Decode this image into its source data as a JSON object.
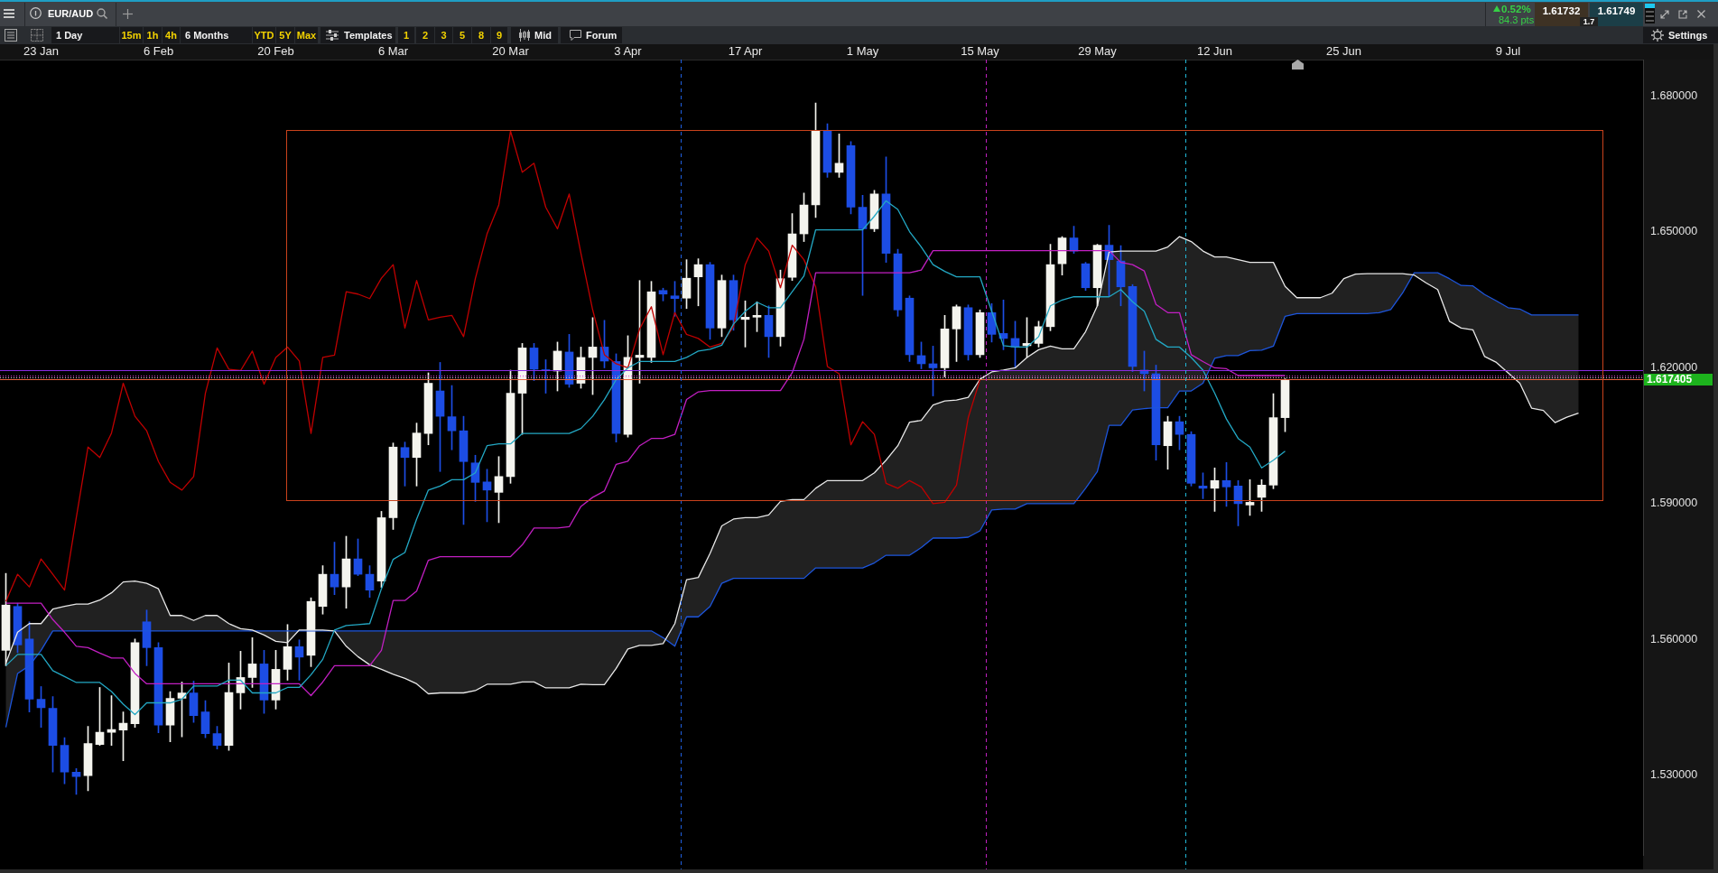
{
  "chart_data": {
    "type": "candlestick",
    "title": "EUR/AUD",
    "categories": [
      null,
      null,
      null,
      "23 Jan",
      null,
      null,
      null,
      null,
      null,
      null,
      null,
      null,
      null,
      "6 Feb",
      null,
      null,
      null,
      null,
      null,
      null,
      null,
      null,
      null,
      "20 Feb",
      null,
      null,
      null,
      null,
      null,
      null,
      null,
      null,
      null,
      "6 Mar",
      null,
      null,
      null,
      null,
      null,
      null,
      null,
      null,
      null,
      "20 Mar",
      null,
      null,
      null,
      null,
      null,
      null,
      null,
      null,
      null,
      "3 Apr",
      null,
      null,
      null,
      null,
      null,
      null,
      null,
      null,
      null,
      "17 Apr",
      null,
      null,
      null,
      null,
      null,
      null,
      null,
      null,
      null,
      "1 May",
      null,
      null,
      null,
      null,
      null,
      null,
      null,
      null,
      null,
      "15 May",
      null,
      null,
      null,
      null,
      null,
      null,
      null,
      null,
      null,
      "29 May",
      null,
      null,
      null,
      null,
      null,
      null,
      null,
      null,
      null,
      "12 Jun",
      null,
      null,
      null,
      null,
      null,
      null,
      null,
      null,
      null,
      null,
      "25 Jun",
      null,
      null,
      null,
      null,
      null,
      null,
      null,
      null,
      null,
      null,
      null,
      null,
      null,
      "9 Jul",
      null,
      null,
      null,
      null,
      null,
      null,
      null,
      null,
      null,
      null,
      null
    ],
    "ohlc": [
      [
        1.5576,
        1.5746,
        1.5542,
        1.5676
      ],
      [
        1.5673,
        1.568,
        1.5571,
        1.5588
      ],
      [
        1.5601,
        1.5639,
        1.544,
        1.5468
      ],
      [
        1.5468,
        1.5496,
        1.5406,
        1.5449
      ],
      [
        1.5448,
        1.5474,
        1.5307,
        1.5366
      ],
      [
        1.5366,
        1.5383,
        1.5281,
        1.5307
      ],
      [
        1.5307,
        1.5315,
        1.5258,
        1.5297
      ],
      [
        1.5299,
        1.5408,
        1.5266,
        1.537
      ],
      [
        1.5368,
        1.5494,
        1.5366,
        1.5395
      ],
      [
        1.5395,
        1.5476,
        1.5366,
        1.5401
      ],
      [
        1.54,
        1.544,
        1.5332,
        1.5415
      ],
      [
        1.5414,
        1.5601,
        1.5406,
        1.5593
      ],
      [
        1.5639,
        1.5665,
        1.5542,
        1.5582
      ],
      [
        1.5582,
        1.5593,
        1.5394,
        1.5411
      ],
      [
        1.5411,
        1.5485,
        1.5374,
        1.547
      ],
      [
        1.547,
        1.5506,
        1.5385,
        1.5482
      ],
      [
        1.5482,
        1.5508,
        1.5417,
        1.5432
      ],
      [
        1.544,
        1.5465,
        1.5383,
        1.5392
      ],
      [
        1.5392,
        1.5408,
        1.5358,
        1.5366
      ],
      [
        1.5366,
        1.5548,
        1.5355,
        1.5483
      ],
      [
        1.5482,
        1.5574,
        1.5446,
        1.5516
      ],
      [
        1.5516,
        1.5604,
        1.5494,
        1.5546
      ],
      [
        1.5546,
        1.5576,
        1.5437,
        1.5466
      ],
      [
        1.5466,
        1.5576,
        1.5446,
        1.5534
      ],
      [
        1.5534,
        1.5633,
        1.551,
        1.5584
      ],
      [
        1.5584,
        1.5599,
        1.551,
        1.5561
      ],
      [
        1.5565,
        1.5692,
        1.554,
        1.5684
      ],
      [
        1.5673,
        1.5763,
        1.5656,
        1.5744
      ],
      [
        1.5744,
        1.5815,
        1.5699,
        1.5716
      ],
      [
        1.5716,
        1.5828,
        1.5669,
        1.5778
      ],
      [
        1.5778,
        1.5822,
        1.5741,
        1.5744
      ],
      [
        1.5744,
        1.5763,
        1.5693,
        1.5709
      ],
      [
        1.5729,
        1.5883,
        1.5715,
        1.5869
      ],
      [
        1.5869,
        1.6034,
        1.5843,
        1.6025
      ],
      [
        1.6024,
        1.6036,
        1.5939,
        1.6002
      ],
      [
        1.6002,
        1.6078,
        1.5939,
        1.6056
      ],
      [
        1.6055,
        1.6189,
        1.603,
        1.6166
      ],
      [
        1.6149,
        1.6212,
        1.5971,
        1.6093
      ],
      [
        1.6092,
        1.6161,
        1.6019,
        1.6061
      ],
      [
        1.6061,
        1.6093,
        1.5854,
        1.5993
      ],
      [
        1.599,
        1.6007,
        1.5905,
        1.5947
      ],
      [
        1.5948,
        1.5976,
        1.586,
        1.593
      ],
      [
        1.5925,
        1.6004,
        1.5858,
        1.596
      ],
      [
        1.596,
        1.6195,
        1.5945,
        1.6144
      ],
      [
        1.6144,
        1.6254,
        1.6053,
        1.6244
      ],
      [
        1.6244,
        1.6254,
        1.6172,
        1.6197
      ],
      [
        1.6196,
        1.6218,
        1.6144,
        1.6194
      ],
      [
        1.6193,
        1.6257,
        1.6149,
        1.6237
      ],
      [
        1.6235,
        1.6274,
        1.6157,
        1.6164
      ],
      [
        1.6166,
        1.6246,
        1.6155,
        1.6223
      ],
      [
        1.6223,
        1.6311,
        1.6141,
        1.6246
      ],
      [
        1.6246,
        1.6305,
        1.62,
        1.6215
      ],
      [
        1.6214,
        1.6231,
        1.6036,
        1.6055
      ],
      [
        1.6053,
        1.6271,
        1.6047,
        1.6223
      ],
      [
        1.6223,
        1.6393,
        1.6166,
        1.6228
      ],
      [
        1.6223,
        1.6391,
        1.6212,
        1.6368
      ],
      [
        1.6371,
        1.6376,
        1.6348,
        1.6363
      ],
      [
        1.6359,
        1.6391,
        1.6314,
        1.6353
      ],
      [
        1.6354,
        1.6439,
        1.6331,
        1.6398
      ],
      [
        1.6401,
        1.6441,
        1.6337,
        1.6428
      ],
      [
        1.6428,
        1.6433,
        1.6263,
        1.6288
      ],
      [
        1.6288,
        1.6405,
        1.6269,
        1.6393
      ],
      [
        1.6393,
        1.6405,
        1.6283,
        1.6306
      ],
      [
        1.6307,
        1.6348,
        1.6246,
        1.6312
      ],
      [
        1.6312,
        1.6346,
        1.628,
        1.6316
      ],
      [
        1.6316,
        1.6337,
        1.6223,
        1.6269
      ],
      [
        1.6269,
        1.6416,
        1.6248,
        1.6397
      ],
      [
        1.64,
        1.6541,
        1.6393,
        1.6496
      ],
      [
        1.6496,
        1.6586,
        1.6479,
        1.656
      ],
      [
        1.656,
        1.6785,
        1.6532,
        1.6723
      ],
      [
        1.6723,
        1.6739,
        1.6621,
        1.6632
      ],
      [
        1.6632,
        1.6717,
        1.6621,
        1.6652
      ],
      [
        1.6691,
        1.67,
        1.654,
        1.6555
      ],
      [
        1.6555,
        1.6581,
        1.636,
        1.6507
      ],
      [
        1.6507,
        1.6592,
        1.6501,
        1.6584
      ],
      [
        1.6584,
        1.6666,
        1.6433,
        1.6453
      ],
      [
        1.6452,
        1.6462,
        1.6314,
        1.6328
      ],
      [
        1.6354,
        1.6359,
        1.6214,
        1.6229
      ],
      [
        1.6227,
        1.6257,
        1.6198,
        1.6209
      ],
      [
        1.6209,
        1.6248,
        1.6138,
        1.62
      ],
      [
        1.62,
        1.6316,
        1.618,
        1.6286
      ],
      [
        1.6286,
        1.6339,
        1.6214,
        1.6335
      ],
      [
        1.6333,
        1.6339,
        1.6217,
        1.6229
      ],
      [
        1.6229,
        1.6328,
        1.6223,
        1.6322
      ],
      [
        1.6322,
        1.6342,
        1.6257,
        1.6274
      ],
      [
        1.6276,
        1.635,
        1.624,
        1.6265
      ],
      [
        1.6265,
        1.6303,
        1.62,
        1.6246
      ],
      [
        1.6249,
        1.6311,
        1.6223,
        1.6254
      ],
      [
        1.6254,
        1.6303,
        1.6246,
        1.6291
      ],
      [
        1.6291,
        1.6473,
        1.6282,
        1.6428
      ],
      [
        1.643,
        1.649,
        1.6405,
        1.6487
      ],
      [
        1.6487,
        1.6513,
        1.6453,
        1.6458
      ],
      [
        1.643,
        1.6433,
        1.6371,
        1.6377
      ],
      [
        1.6377,
        1.6473,
        1.6337,
        1.6471
      ],
      [
        1.6471,
        1.6515,
        1.6359,
        1.6439
      ],
      [
        1.6436,
        1.647,
        1.6337,
        1.6379
      ],
      [
        1.638,
        1.6384,
        1.6192,
        1.6203
      ],
      [
        1.6195,
        1.6237,
        1.6149,
        1.6187
      ],
      [
        1.6187,
        1.6206,
        1.5996,
        1.603
      ],
      [
        1.6028,
        1.6093,
        1.5976,
        1.6081
      ],
      [
        1.6081,
        1.6093,
        1.6019,
        1.6053
      ],
      [
        1.6053,
        1.6059,
        1.5939,
        1.5945
      ],
      [
        1.5939,
        1.5968,
        1.5911,
        1.5934
      ],
      [
        1.5934,
        1.5979,
        1.5883,
        1.5951
      ],
      [
        1.5951,
        1.5991,
        1.5894,
        1.5937
      ],
      [
        1.5939,
        1.5951,
        1.5851,
        1.59
      ],
      [
        1.5897,
        1.5953,
        1.5874,
        1.5903
      ],
      [
        1.5914,
        1.5953,
        1.5883,
        1.5941
      ],
      [
        1.5941,
        1.6143,
        1.5933,
        1.609
      ],
      [
        1.609,
        1.6176,
        1.6059,
        1.6174
      ],
      null,
      null,
      null,
      null,
      null,
      null,
      null,
      null,
      null,
      null,
      null,
      null,
      null,
      null,
      null,
      null,
      null,
      null,
      null,
      null,
      null,
      null,
      null,
      null,
      null,
      null,
      null,
      null,
      null,
      null
    ],
    "colors": [
      "#f4f4ee",
      "#1c4de4",
      "#1c4de4",
      "#1c4de4",
      "#1c4de4",
      "#1c4de4",
      "#1c4de4",
      "#f4f4ee",
      "#f4f4ee",
      "#f4f4ee",
      "#f4f4ee",
      "#f4f4ee",
      "#1c4de4",
      "#1c4de4",
      "#f4f4ee",
      "#f4f4ee",
      "#1c4de4",
      "#1c4de4",
      "#1c4de4",
      "#f4f4ee",
      "#f4f4ee",
      "#f4f4ee",
      "#1c4de4",
      "#f4f4ee",
      "#f4f4ee",
      "#1c4de4",
      "#f4f4ee",
      "#f4f4ee",
      "#1c4de4",
      "#f4f4ee",
      "#1c4de4",
      "#1c4de4",
      "#f4f4ee",
      "#f4f4ee",
      "#1c4de4",
      "#f4f4ee",
      "#f4f4ee",
      "#1c4de4",
      "#1c4de4",
      "#1c4de4",
      "#1c4de4",
      "#1c4de4",
      "#f4f4ee",
      "#f4f4ee",
      "#f4f4ee",
      "#1c4de4",
      "#1c4de4",
      "#f4f4ee",
      "#1c4de4",
      "#f4f4ee",
      "#f4f4ee",
      "#1c4de4",
      "#1c4de4",
      "#f4f4ee",
      "#f4f4ee",
      "#f4f4ee",
      "#1c4de4",
      "#1c4de4",
      "#f4f4ee",
      "#f4f4ee",
      "#1c4de4",
      "#f4f4ee",
      "#1c4de4",
      "#f4f4ee",
      "#f4f4ee",
      "#1c4de4",
      "#f4f4ee",
      "#f4f4ee",
      "#f4f4ee",
      "#f4f4ee",
      "#1c4de4",
      "#f4f4ee",
      "#1c4de4",
      "#1c4de4",
      "#f4f4ee",
      "#1c4de4",
      "#1c4de4",
      "#1c4de4",
      "#1c4de4",
      "#1c4de4",
      "#f4f4ee",
      "#f4f4ee",
      "#1c4de4",
      "#f4f4ee",
      "#1c4de4",
      "#1c4de4",
      "#1c4de4",
      "#f4f4ee",
      "#f4f4ee",
      "#f4f4ee",
      "#f4f4ee",
      "#1c4de4",
      "#1c4de4",
      "#f4f4ee",
      "#1c4de4",
      "#1c4de4",
      "#1c4de4",
      "#1c4de4",
      "#1c4de4",
      "#f4f4ee",
      "#1c4de4",
      "#1c4de4",
      "#1c4de4",
      "#f4f4ee",
      "#1c4de4",
      "#1c4de4",
      "#f4f4ee",
      "#f4f4ee",
      "#f4f4ee",
      "#f4f4ee",
      null,
      null,
      null,
      null,
      null,
      null,
      null,
      null,
      null,
      null,
      null,
      null,
      null,
      null,
      null,
      null,
      null,
      null,
      null,
      null,
      null,
      null,
      null,
      null,
      null,
      null,
      null,
      null,
      null,
      null
    ],
    "series": [
      {
        "type": "line",
        "color": "#23a8c4",
        "values": [
          1.5542,
          1.5567,
          1.5567,
          1.5567,
          1.5531,
          1.5518,
          1.5505,
          1.5505,
          1.5505,
          1.5485,
          1.5457,
          1.5434,
          1.546,
          1.546,
          1.546,
          1.5468,
          1.5497,
          1.5497,
          1.5497,
          1.551,
          1.551,
          1.5482,
          1.5482,
          1.5482,
          1.5494,
          1.5494,
          1.5522,
          1.5556,
          1.5621,
          1.5631,
          1.5633,
          1.5635,
          1.5712,
          1.5777,
          1.5792,
          1.5866,
          1.593,
          1.5939,
          1.5953,
          1.5953,
          1.5968,
          1.6028,
          1.6032,
          1.6032,
          1.6055,
          1.6055,
          1.6055,
          1.6055,
          1.6055,
          1.6066,
          1.6093,
          1.613,
          1.6174,
          1.62,
          1.6214,
          1.6214,
          1.6214,
          1.6214,
          1.6223,
          1.6237,
          1.6241,
          1.625,
          1.6297,
          1.6325,
          1.6345,
          1.6333,
          1.6333,
          1.6368,
          1.6403,
          1.6505,
          1.6505,
          1.6505,
          1.6505,
          1.6505,
          1.6535,
          1.6569,
          1.655,
          1.6501,
          1.6467,
          1.6428,
          1.6413,
          1.6401,
          1.6401,
          1.6401,
          1.6325,
          1.6249,
          1.6246,
          1.6246,
          1.6269,
          1.6337,
          1.635,
          1.6357,
          1.6357,
          1.6357,
          1.6357,
          1.6373,
          1.6346,
          1.6325,
          1.6263,
          1.6246,
          1.6246,
          1.6223,
          1.6195,
          1.6144,
          1.6087,
          1.6044,
          1.6025,
          1.5979,
          1.5996,
          1.6016,
          null,
          null,
          null,
          null,
          null,
          null,
          null,
          null,
          null,
          null,
          null,
          null,
          null,
          null,
          null,
          null,
          null,
          null,
          null,
          null,
          null,
          null,
          null,
          null,
          null,
          null,
          null,
          null,
          null,
          null
        ]
      },
      {
        "type": "line",
        "color": "#c21fc2",
        "values": [
          1.568,
          1.568,
          1.568,
          1.568,
          1.5644,
          1.5616,
          1.5585,
          1.5582,
          1.557,
          1.5559,
          1.5559,
          1.5525,
          1.5502,
          1.5502,
          1.5502,
          1.5502,
          1.5502,
          1.5502,
          1.5502,
          1.5502,
          1.5502,
          1.5502,
          1.5502,
          1.5502,
          1.5502,
          1.5502,
          1.5476,
          1.5506,
          1.5542,
          1.5542,
          1.5542,
          1.5542,
          1.5576,
          1.5686,
          1.5686,
          1.5707,
          1.5775,
          1.5783,
          1.5783,
          1.5783,
          1.5783,
          1.5783,
          1.5783,
          1.5783,
          1.5809,
          1.5846,
          1.5846,
          1.5846,
          1.5849,
          1.5894,
          1.5914,
          1.5928,
          1.5987,
          1.5994,
          1.6028,
          1.6044,
          1.6044,
          1.6053,
          1.613,
          1.6147,
          1.615,
          1.615,
          1.615,
          1.615,
          1.615,
          1.615,
          1.615,
          1.6189,
          1.6263,
          1.641,
          1.641,
          1.641,
          1.641,
          1.641,
          1.641,
          1.641,
          1.641,
          1.641,
          1.6416,
          1.6459,
          1.6459,
          1.6459,
          1.6459,
          1.6459,
          1.6459,
          1.6459,
          1.6459,
          1.6459,
          1.6459,
          1.6459,
          1.6459,
          1.6459,
          1.6459,
          1.6459,
          1.6459,
          1.6433,
          1.6428,
          1.6414,
          1.634,
          1.6322,
          1.6322,
          1.6229,
          1.6214,
          1.62,
          1.6198,
          1.6183,
          1.6183,
          1.6183,
          1.6183,
          1.6183,
          null,
          null,
          null,
          null,
          null,
          null,
          null,
          null,
          null,
          null,
          null,
          null,
          null,
          null,
          null,
          null,
          null,
          null,
          null,
          null,
          null,
          null,
          null,
          null,
          null,
          null,
          null,
          null,
          null,
          null
        ]
      },
      {
        "type": "line",
        "color": "#c00000",
        "values": [
          1.5684,
          1.5744,
          1.5716,
          1.5778,
          1.5744,
          1.5709,
          1.5869,
          1.6025,
          1.6002,
          1.6056,
          1.6166,
          1.6093,
          1.6061,
          1.5993,
          1.5947,
          1.593,
          1.596,
          1.6144,
          1.6244,
          1.6197,
          1.6194,
          1.6237,
          1.6164,
          1.6223,
          1.6246,
          1.6215,
          1.6055,
          1.6223,
          1.6228,
          1.6368,
          1.6363,
          1.6353,
          1.6398,
          1.6428,
          1.6288,
          1.6393,
          1.6306,
          1.6312,
          1.6316,
          1.6269,
          1.6397,
          1.6496,
          1.656,
          1.6723,
          1.6632,
          1.6652,
          1.6555,
          1.6507,
          1.6584,
          1.6453,
          1.6328,
          1.6229,
          1.6209,
          1.62,
          1.6286,
          1.6335,
          1.6229,
          1.6322,
          1.6274,
          1.6265,
          1.6246,
          1.6254,
          1.6291,
          1.6428,
          1.6487,
          1.6458,
          1.6377,
          1.6471,
          1.6439,
          1.6379,
          1.6203,
          1.6187,
          1.603,
          1.6081,
          1.6053,
          1.5945,
          1.5934,
          1.5951,
          1.5937,
          1.59,
          1.5903,
          1.5941,
          1.609,
          1.6174,
          null,
          null,
          null,
          null,
          null,
          null,
          null,
          null,
          null,
          null,
          null,
          null,
          null,
          null,
          null,
          null,
          null,
          null,
          null,
          null,
          null,
          null,
          null,
          null,
          null,
          null,
          null,
          null,
          null,
          null,
          null,
          null,
          null,
          null,
          null,
          null,
          null,
          null,
          null,
          null,
          null,
          null,
          null,
          null,
          null,
          null,
          null,
          null,
          null,
          null,
          null,
          null,
          null,
          null,
          null,
          null
        ]
      },
      {
        "type": "line",
        "color": "#e8e8e8",
        "values": [
          1.5548,
          1.5616,
          1.5635,
          1.5635,
          1.5667,
          1.5673,
          1.5678,
          1.5678,
          1.5687,
          1.5703,
          1.5727,
          1.5729,
          1.5724,
          1.5712,
          1.5653,
          1.5653,
          1.5642,
          1.5653,
          1.5653,
          1.5635,
          1.5624,
          1.5621,
          1.561,
          1.5596,
          1.5593,
          1.5621,
          1.5621,
          1.5621,
          1.5619,
          1.5585,
          1.5562,
          1.5544,
          1.5534,
          1.5523,
          1.5514,
          1.5502,
          1.548,
          1.5482,
          1.5482,
          1.5482,
          1.5487,
          1.5501,
          1.5501,
          1.5501,
          1.5506,
          1.5506,
          1.5493,
          1.5493,
          1.5493,
          1.5501,
          1.55,
          1.55,
          1.5536,
          1.5579,
          1.5587,
          1.5587,
          1.5591,
          1.5635,
          1.5732,
          1.5737,
          1.579,
          1.5851,
          1.5866,
          1.5869,
          1.5869,
          1.5875,
          1.5905,
          1.5909,
          1.5909,
          1.5934,
          1.5951,
          1.5951,
          1.5951,
          1.5951,
          1.5968,
          1.5996,
          1.6028,
          1.608,
          1.6084,
          1.6118,
          1.6127,
          1.6129,
          1.6135,
          1.6175,
          1.6191,
          1.6195,
          1.62,
          1.6223,
          1.624,
          1.6248,
          1.6242,
          1.6242,
          1.628,
          1.6337,
          1.6456,
          1.6458,
          1.6458,
          1.6458,
          1.6458,
          1.6467,
          1.649,
          1.6479,
          1.6458,
          1.6445,
          1.6445,
          1.6439,
          1.6433,
          1.6433,
          1.6433,
          1.638,
          1.6355,
          1.6355,
          1.6355,
          1.6365,
          1.6397,
          1.6407,
          1.6408,
          1.6408,
          1.6408,
          1.6408,
          1.6405,
          1.6388,
          1.6373,
          1.6303,
          1.6288,
          1.6284,
          1.6225,
          1.6212,
          1.6189,
          1.6166,
          1.6111,
          1.6106,
          1.6079,
          1.6091,
          1.61,
          null,
          null,
          null,
          null,
          null
        ],
        "lower": [
          1.5406,
          1.5525,
          1.5542,
          1.5576,
          1.5619,
          1.5619,
          1.5619,
          1.5619,
          1.5619,
          1.5619,
          1.5619,
          1.5619,
          1.5619,
          1.5619,
          1.5619,
          1.5619,
          1.5619,
          1.5619,
          1.5619,
          1.5619,
          1.5619,
          1.5619,
          1.5619,
          1.5619,
          1.5619,
          1.5619,
          1.5619,
          1.5619,
          1.5619,
          1.5619,
          1.5619,
          1.5619,
          1.5619,
          1.5619,
          1.5619,
          1.5619,
          1.5619,
          1.5619,
          1.5619,
          1.5619,
          1.5619,
          1.5619,
          1.5619,
          1.5619,
          1.5619,
          1.5619,
          1.5619,
          1.5619,
          1.5619,
          1.5619,
          1.5619,
          1.5619,
          1.5619,
          1.5619,
          1.5619,
          1.5619,
          1.5604,
          1.5585,
          1.565,
          1.565,
          1.5673,
          1.5724,
          1.5735,
          1.5735,
          1.5735,
          1.5735,
          1.5735,
          1.5735,
          1.5735,
          1.5758,
          1.5758,
          1.5758,
          1.5758,
          1.5758,
          1.5769,
          1.5786,
          1.5786,
          1.5786,
          1.5803,
          1.5824,
          1.5824,
          1.5824,
          1.5826,
          1.584,
          1.5886,
          1.5888,
          1.5888,
          1.59,
          1.59,
          1.59,
          1.59,
          1.59,
          1.5934,
          1.5971,
          1.6073,
          1.6073,
          1.6107,
          1.611,
          1.6112,
          1.6112,
          1.6149,
          1.6149,
          1.6166,
          1.6221,
          1.6227,
          1.6227,
          1.6238,
          1.6239,
          1.6248,
          1.6314,
          1.632,
          1.632,
          1.632,
          1.632,
          1.632,
          1.632,
          1.632,
          1.6322,
          1.6329,
          1.6365,
          1.641,
          1.641,
          1.641,
          1.6397,
          1.6382,
          1.6381,
          1.6362,
          1.6348,
          1.6333,
          1.633,
          1.6317,
          1.6317,
          1.6317,
          1.6317,
          1.6317,
          null,
          null,
          null,
          null,
          null
        ],
        "upper": [
          1.5548,
          1.5616,
          1.5635,
          1.5635,
          1.5667,
          1.5673,
          1.5678,
          1.5678,
          1.5687,
          1.5703,
          1.5727,
          1.5729,
          1.5724,
          1.5712,
          1.5653,
          1.5653,
          1.5642,
          1.5653,
          1.5653,
          1.5635,
          1.5624,
          1.5621,
          1.561,
          1.5596,
          1.5593,
          1.5621,
          1.5621,
          1.5621,
          1.5619,
          1.5585,
          1.5562,
          1.5544,
          1.5534,
          1.5523,
          1.5514,
          1.5502,
          1.548,
          1.5482,
          1.5482,
          1.5482,
          1.5487,
          1.5501,
          1.5501,
          1.5501,
          1.5506,
          1.5506,
          1.5493,
          1.5493,
          1.5493,
          1.5501,
          1.55,
          1.55,
          1.5536,
          1.5579,
          1.5587,
          1.5587,
          1.5591,
          1.5635,
          1.5732,
          1.5737,
          1.579,
          1.5851,
          1.5866,
          1.5869,
          1.5869,
          1.5875,
          1.5905,
          1.5909,
          1.5909,
          1.5934,
          1.5951,
          1.5951,
          1.5951,
          1.5951,
          1.5968,
          1.5996,
          1.6028,
          1.608,
          1.6084,
          1.6118,
          1.6127,
          1.6129,
          1.6135,
          1.6175,
          1.6191,
          1.6195,
          1.62,
          1.6223,
          1.624,
          1.6248,
          1.6242,
          1.6242,
          1.628,
          1.6337,
          1.6456,
          1.6458,
          1.6458,
          1.6458,
          1.6458,
          1.6467,
          1.649,
          1.6479,
          1.6458,
          1.6445,
          1.6445,
          1.6439,
          1.6433,
          1.6433,
          1.6433,
          1.638,
          1.6355,
          1.6355,
          1.6355,
          1.6365,
          1.6397,
          1.6407,
          1.6408,
          1.6408,
          1.6408,
          1.6408,
          1.6405,
          1.6388,
          1.6373,
          1.6303,
          1.6288,
          1.6284,
          1.6225,
          1.6212,
          1.6189,
          1.6166,
          1.6111,
          1.6106,
          1.6079,
          1.6091,
          1.61,
          null,
          null,
          null,
          null,
          null
        ]
      },
      {
        "type": "line",
        "color": "#1d55dc",
        "values": [
          1.5406,
          1.5525,
          1.5542,
          1.5576,
          1.5619,
          1.5619,
          1.5619,
          1.5619,
          1.5619,
          1.5619,
          1.5619,
          1.5619,
          1.5619,
          1.5619,
          1.5619,
          1.5619,
          1.5619,
          1.5619,
          1.5619,
          1.5619,
          1.5619,
          1.5619,
          1.5619,
          1.5619,
          1.5619,
          1.5619,
          1.5619,
          1.5619,
          1.5619,
          1.5619,
          1.5619,
          1.5619,
          1.5619,
          1.5619,
          1.5619,
          1.5619,
          1.5619,
          1.5619,
          1.5619,
          1.5619,
          1.5619,
          1.5619,
          1.5619,
          1.5619,
          1.5619,
          1.5619,
          1.5619,
          1.5619,
          1.5619,
          1.5619,
          1.5619,
          1.5619,
          1.5619,
          1.5619,
          1.5619,
          1.5619,
          1.5604,
          1.5585,
          1.565,
          1.565,
          1.5673,
          1.5724,
          1.5735,
          1.5735,
          1.5735,
          1.5735,
          1.5735,
          1.5735,
          1.5735,
          1.5758,
          1.5758,
          1.5758,
          1.5758,
          1.5758,
          1.5769,
          1.5786,
          1.5786,
          1.5786,
          1.5803,
          1.5824,
          1.5824,
          1.5824,
          1.5826,
          1.584,
          1.5886,
          1.5888,
          1.5888,
          1.59,
          1.59,
          1.59,
          1.59,
          1.59,
          1.5934,
          1.5971,
          1.6073,
          1.6073,
          1.6107,
          1.611,
          1.6112,
          1.6112,
          1.6149,
          1.6149,
          1.6166,
          1.6221,
          1.6227,
          1.6227,
          1.6238,
          1.6239,
          1.6248,
          1.6314,
          1.632,
          1.632,
          1.632,
          1.632,
          1.632,
          1.632,
          1.632,
          1.6322,
          1.6329,
          1.6365,
          1.641,
          1.641,
          1.641,
          1.6397,
          1.6382,
          1.6381,
          1.6362,
          1.6348,
          1.6333,
          1.633,
          1.6317,
          1.6317,
          1.6317,
          1.6317,
          1.6317,
          null,
          null,
          null,
          null,
          null
        ]
      }
    ],
    "ylim": [
      1.5123,
      1.6881
    ],
    "yticks": [
      {
        "value": 1.53,
        "label": "1.530000"
      },
      {
        "value": 1.56,
        "label": "1.560000"
      },
      {
        "value": 1.59,
        "label": "1.590000"
      },
      {
        "value": 1.62,
        "label": "1.620000"
      },
      {
        "value": 1.65,
        "label": "1.650000"
      },
      {
        "value": 1.68,
        "label": "1.680000"
      }
    ],
    "ref_lines": [
      {
        "axis": "y",
        "value": 1.6195,
        "color": "#8a2be2",
        "line_style": "solid"
      },
      {
        "axis": "y",
        "value": 1.6183,
        "color": "#e040e0",
        "line_style": "dotted"
      },
      {
        "axis": "y",
        "value": 1.6179,
        "color": "#e8c8e8",
        "line_style": "dotted"
      },
      {
        "axis": "y",
        "value": 1.617405,
        "label": "1.617405",
        "color": "#e8603a",
        "line_style": "solid"
      }
    ],
    "annotations": [
      "1 Day",
      "15m",
      "1h",
      "4h",
      "6 Months",
      "YTD",
      "5Y",
      "Max",
      "Templates",
      "1",
      "2",
      "3",
      "5",
      "8",
      "9",
      "Mid",
      "Forum",
      "Settings",
      "0.52%",
      "84.3 pts",
      "1.61732",
      "1.7",
      "1.61749"
    ]
  }
}
